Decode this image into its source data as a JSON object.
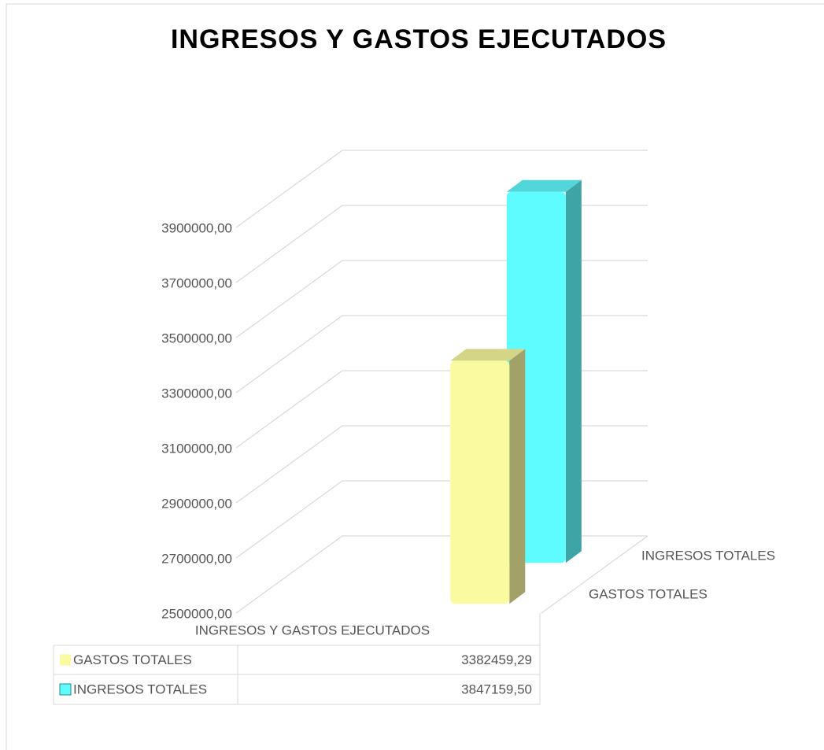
{
  "chart_data": {
    "type": "bar3d",
    "title": "INGRESOS Y GASTOS EJECUTADOS",
    "categories": [
      "INGRESOS Y GASTOS EJECUTADOS"
    ],
    "series": [
      {
        "name": "GASTOS TOTALES",
        "color": "#fafaa0",
        "values": [
          3382459.29
        ],
        "value_labels": [
          "3382459,29"
        ]
      },
      {
        "name": "INGRESOS TOTALES",
        "color": "#5ffcff",
        "values": [
          3847159.5
        ],
        "value_labels": [
          "3847159,50"
        ]
      }
    ],
    "ylim": [
      2500000,
      3900000
    ],
    "yticks": [
      {
        "value": 2500000,
        "label": "2500000,00"
      },
      {
        "value": 2700000,
        "label": "2700000,00"
      },
      {
        "value": 2900000,
        "label": "2900000,00"
      },
      {
        "value": 3100000,
        "label": "3100000,00"
      },
      {
        "value": 3300000,
        "label": "3300000,00"
      },
      {
        "value": 3500000,
        "label": "3500000,00"
      },
      {
        "value": 3700000,
        "label": "3700000,00"
      },
      {
        "value": 3900000,
        "label": "3900000,00"
      }
    ],
    "grid": true,
    "data_table": true
  }
}
